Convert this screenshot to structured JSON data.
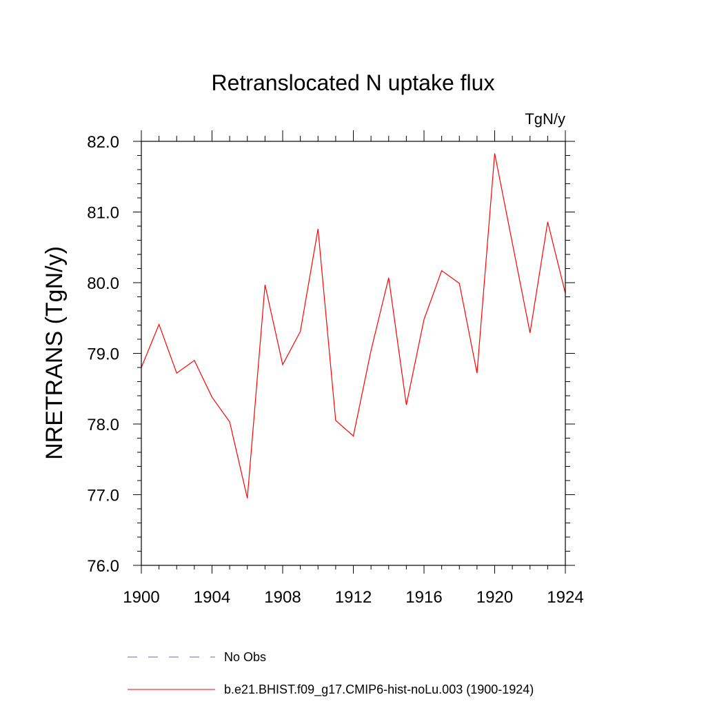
{
  "chart_data": {
    "type": "line",
    "title": "Retranslocated N uptake flux",
    "units_label": "TgN/y",
    "ylabel": "NRETRANS  (TgN/y)",
    "xlabel": "",
    "xlim": [
      1900,
      1924
    ],
    "ylim": [
      76.0,
      82.0
    ],
    "x_ticks": [
      1900,
      1904,
      1908,
      1912,
      1916,
      1920,
      1924
    ],
    "x_tick_labels": [
      "1900",
      "1904",
      "1908",
      "1912",
      "1916",
      "1920",
      "1924"
    ],
    "y_ticks": [
      76.0,
      77.0,
      78.0,
      79.0,
      80.0,
      81.0,
      82.0
    ],
    "y_tick_labels": [
      "76.0",
      "77.0",
      "78.0",
      "79.0",
      "80.0",
      "81.0",
      "82.0"
    ],
    "grid": false,
    "legend_position": "bottom",
    "series": [
      {
        "name": "b.e21.BHIST.f09_g17.CMIP6-hist-noLu.003 (1900-1924)",
        "color": "#ff0000",
        "style": "solid",
        "x": [
          1900,
          1901,
          1902,
          1903,
          1904,
          1905,
          1906,
          1907,
          1908,
          1909,
          1910,
          1911,
          1912,
          1913,
          1914,
          1915,
          1916,
          1917,
          1918,
          1919,
          1920,
          1921,
          1922,
          1923,
          1924
        ],
        "values": [
          78.8,
          79.41,
          78.72,
          78.9,
          78.38,
          78.03,
          76.95,
          79.97,
          78.84,
          79.31,
          80.76,
          78.05,
          77.83,
          79.04,
          80.07,
          78.27,
          79.48,
          80.17,
          79.99,
          78.72,
          81.83,
          80.56,
          79.29,
          80.86,
          79.85
        ]
      },
      {
        "name": "No Obs",
        "color": "#6666cc",
        "style": "dashed",
        "x": [],
        "values": []
      }
    ]
  }
}
